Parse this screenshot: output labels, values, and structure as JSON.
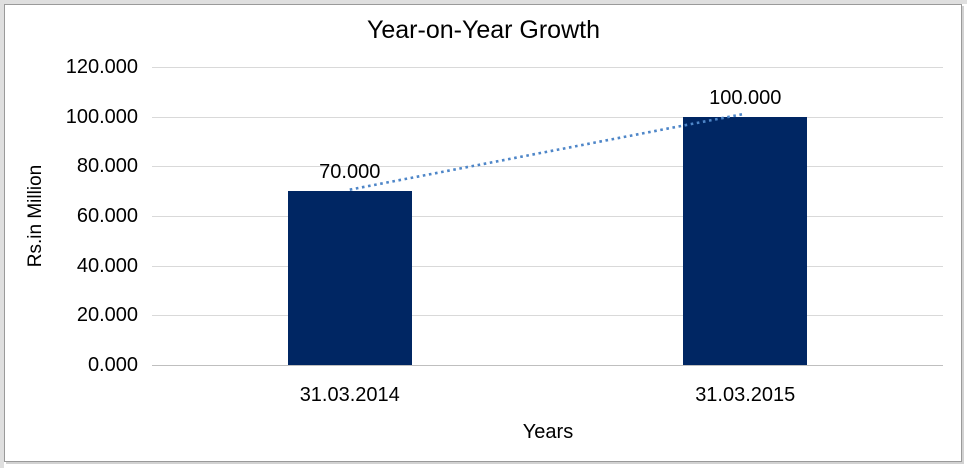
{
  "chart_data": {
    "type": "bar",
    "title": "Year-on-Year Growth",
    "xlabel": "Years",
    "ylabel": "Rs.in Million",
    "categories": [
      "31.03.2014",
      "31.03.2015"
    ],
    "values": [
      70,
      100
    ],
    "value_labels": [
      "70.000",
      "100.000"
    ],
    "y_ticks": [
      {
        "value": 0,
        "label": "0.000"
      },
      {
        "value": 20,
        "label": "20.000"
      },
      {
        "value": 40,
        "label": "40.000"
      },
      {
        "value": 60,
        "label": "60.000"
      },
      {
        "value": 80,
        "label": "80.000"
      },
      {
        "value": 100,
        "label": "100.000"
      },
      {
        "value": 120,
        "label": "120.000"
      }
    ],
    "ylim": [
      0,
      120
    ],
    "grid": true,
    "legend": "none",
    "trendline": {
      "style": "dotted",
      "connects_values": [
        70,
        100
      ]
    },
    "colors": {
      "bar": "#002663",
      "trendline": "#4e86c8",
      "gridline": "#d9d9d9",
      "axis_line": "#bfbfbf",
      "text": "#000000",
      "frame_border": "#9a9a9a"
    }
  }
}
